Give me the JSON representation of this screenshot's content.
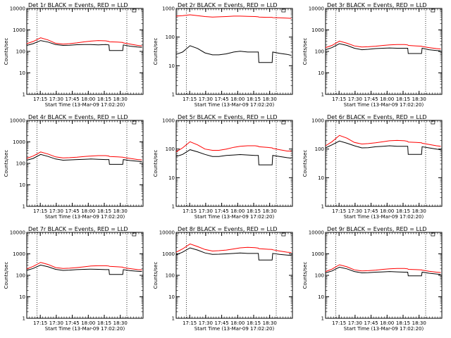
{
  "figure": {
    "background": "#ffffff",
    "series_colors": {
      "events": "#000000",
      "lld": "#ff0000"
    }
  },
  "chart_data": [
    {
      "type": "line",
      "title": "Det 1r BLACK = Events, RED = LLD",
      "xlabel": "Start Time (13-Mar-09 17:02:20)",
      "ylabel": "Counts/sec",
      "yscale": "log",
      "ylim": [
        1,
        10000
      ],
      "xticks": [
        "17:15",
        "17:30",
        "17:45",
        "18:00",
        "18:15",
        "18:30"
      ],
      "yticks": [
        "1",
        "10",
        "100",
        "1000",
        "10000"
      ],
      "x_minutes": [
        0,
        6,
        13,
        20,
        27,
        34,
        40,
        47,
        54,
        60,
        67,
        74,
        77,
        77.5,
        85,
        90,
        90.5,
        97,
        104,
        108
      ],
      "series": [
        {
          "color": "#000000",
          "values": [
            190,
            230,
            320,
            270,
            210,
            190,
            195,
            205,
            210,
            210,
            200,
            210,
            200,
            110,
            110,
            110,
            200,
            175,
            160,
            155
          ]
        },
        {
          "color": "#ff0000",
          "values": [
            230,
            290,
            430,
            340,
            240,
            220,
            230,
            250,
            280,
            300,
            320,
            310,
            290,
            280,
            270,
            260,
            250,
            220,
            190,
            180
          ]
        }
      ]
    },
    {
      "type": "line",
      "title": "Det 2r BLACK = Events, RED = LLD",
      "xlabel": "Start Time (13-Mar-09 17:02:20)",
      "ylabel": "Counts/sec",
      "yscale": "log",
      "ylim": [
        1,
        1000
      ],
      "xticks": [
        "17:15",
        "17:30",
        "17:45",
        "18:00",
        "18:15",
        "18:30"
      ],
      "yticks": [
        "1",
        "10",
        "100",
        "1000"
      ],
      "x_minutes": [
        0,
        6,
        13,
        20,
        27,
        34,
        40,
        47,
        54,
        60,
        67,
        74,
        77,
        77.5,
        85,
        90,
        90.5,
        97,
        104,
        108
      ],
      "series": [
        {
          "color": "#000000",
          "values": [
            25,
            30,
            50,
            40,
            28,
            24,
            24,
            26,
            30,
            32,
            30,
            30,
            30,
            13,
            13,
            13,
            30,
            27,
            25,
            23
          ]
        },
        {
          "color": "#ff0000",
          "values": [
            540,
            560,
            600,
            560,
            520,
            500,
            510,
            520,
            540,
            540,
            530,
            520,
            510,
            500,
            490,
            490,
            480,
            470,
            460,
            450
          ]
        }
      ]
    },
    {
      "type": "line",
      "title": "Det 3r BLACK = Events, RED = LLD",
      "xlabel": "Start Time (13-Mar-09 17:02:20)",
      "ylabel": "Counts/sec",
      "yscale": "log",
      "ylim": [
        1,
        10000
      ],
      "xticks": [
        "17:15",
        "17:30",
        "17:45",
        "18:00",
        "18:15",
        "18:30"
      ],
      "yticks": [
        "1",
        "10",
        "100",
        "1000",
        "10000"
      ],
      "x_minutes": [
        0,
        6,
        13,
        20,
        27,
        34,
        40,
        47,
        54,
        60,
        67,
        74,
        77,
        77.5,
        85,
        90,
        90.5,
        97,
        104,
        108
      ],
      "series": [
        {
          "color": "#000000",
          "values": [
            120,
            150,
            230,
            190,
            140,
            120,
            125,
            135,
            140,
            145,
            140,
            140,
            140,
            80,
            80,
            80,
            140,
            120,
            110,
            105
          ]
        },
        {
          "color": "#ff0000",
          "values": [
            150,
            190,
            300,
            240,
            180,
            160,
            165,
            175,
            190,
            200,
            210,
            210,
            200,
            190,
            180,
            175,
            170,
            150,
            135,
            130
          ]
        }
      ]
    },
    {
      "type": "line",
      "title": "Det 4r BLACK = Events, RED = LLD",
      "xlabel": "Start Time (13-Mar-09 17:02:20)",
      "ylabel": "Counts/sec",
      "yscale": "log",
      "ylim": [
        1,
        10000
      ],
      "xticks": [
        "17:15",
        "17:30",
        "17:45",
        "18:00",
        "18:15",
        "18:30"
      ],
      "yticks": [
        "1",
        "10",
        "100",
        "1000",
        "10000"
      ],
      "x_minutes": [
        0,
        6,
        13,
        20,
        27,
        34,
        40,
        47,
        54,
        60,
        67,
        74,
        77,
        77.5,
        85,
        90,
        90.5,
        97,
        104,
        108
      ],
      "series": [
        {
          "color": "#000000",
          "values": [
            140,
            170,
            260,
            210,
            160,
            140,
            145,
            150,
            155,
            160,
            155,
            150,
            150,
            90,
            90,
            90,
            150,
            135,
            125,
            120
          ]
        },
        {
          "color": "#ff0000",
          "values": [
            170,
            220,
            340,
            270,
            200,
            180,
            185,
            195,
            210,
            220,
            230,
            230,
            220,
            210,
            200,
            195,
            190,
            170,
            150,
            145
          ]
        }
      ]
    },
    {
      "type": "line",
      "title": "Det 5r BLACK = Events, RED = LLD",
      "xlabel": "Start Time (13-Mar-09 17:02:20)",
      "ylabel": "Counts/sec",
      "yscale": "log",
      "ylim": [
        1,
        1000
      ],
      "xticks": [
        "17:15",
        "17:30",
        "17:45",
        "18:00",
        "18:15",
        "18:30"
      ],
      "yticks": [
        "1",
        "10",
        "100",
        "1000"
      ],
      "x_minutes": [
        0,
        6,
        13,
        20,
        27,
        34,
        40,
        47,
        54,
        60,
        67,
        74,
        77,
        77.5,
        85,
        90,
        90.5,
        97,
        104,
        108
      ],
      "series": [
        {
          "color": "#000000",
          "values": [
            55,
            65,
            95,
            80,
            65,
            55,
            55,
            60,
            62,
            64,
            62,
            60,
            60,
            28,
            28,
            28,
            60,
            55,
            50,
            48
          ]
        },
        {
          "color": "#ff0000",
          "values": [
            80,
            110,
            180,
            140,
            100,
            90,
            90,
            100,
            115,
            125,
            130,
            130,
            125,
            120,
            115,
            110,
            105,
            95,
            85,
            85
          ]
        }
      ]
    },
    {
      "type": "line",
      "title": "Det 6r BLACK = Events, RED = LLD",
      "xlabel": "Start Time (13-Mar-09 17:02:20)",
      "ylabel": "Counts/sec",
      "yscale": "log",
      "ylim": [
        1,
        1000
      ],
      "xticks": [
        "17:15",
        "17:30",
        "17:45",
        "18:00",
        "18:15",
        "18:30"
      ],
      "yticks": [
        "1",
        "10",
        "100",
        "1000"
      ],
      "x_minutes": [
        0,
        6,
        13,
        20,
        27,
        34,
        40,
        47,
        54,
        60,
        67,
        74,
        77,
        77.5,
        85,
        90,
        90.5,
        97,
        104,
        108
      ],
      "series": [
        {
          "color": "#000000",
          "values": [
            110,
            140,
            190,
            160,
            130,
            110,
            112,
            120,
            125,
            130,
            125,
            125,
            125,
            65,
            65,
            65,
            120,
            110,
            100,
            95
          ]
        },
        {
          "color": "#ff0000",
          "values": [
            130,
            180,
            300,
            240,
            170,
            150,
            155,
            165,
            180,
            195,
            200,
            195,
            185,
            175,
            170,
            165,
            160,
            145,
            130,
            125
          ]
        }
      ]
    },
    {
      "type": "line",
      "title": "Det 7r BLACK = Events, RED = LLD",
      "xlabel": "Start Time (13-Mar-09 17:02:20)",
      "ylabel": "Counts/sec",
      "yscale": "log",
      "ylim": [
        1,
        10000
      ],
      "xticks": [
        "17:15",
        "17:30",
        "17:45",
        "18:00",
        "18:15",
        "18:30"
      ],
      "yticks": [
        "1",
        "10",
        "100",
        "1000",
        "10000"
      ],
      "x_minutes": [
        0,
        6,
        13,
        20,
        27,
        34,
        40,
        47,
        54,
        60,
        67,
        74,
        77,
        77.5,
        85,
        90,
        90.5,
        97,
        104,
        108
      ],
      "series": [
        {
          "color": "#000000",
          "values": [
            170,
            210,
            300,
            250,
            190,
            170,
            175,
            185,
            190,
            195,
            190,
            185,
            185,
            110,
            110,
            110,
            185,
            165,
            155,
            150
          ]
        },
        {
          "color": "#ff0000",
          "values": [
            200,
            260,
            400,
            320,
            230,
            210,
            215,
            230,
            250,
            270,
            280,
            280,
            270,
            260,
            250,
            240,
            230,
            205,
            185,
            180
          ]
        }
      ]
    },
    {
      "type": "line",
      "title": "Det 8r BLACK = Events, RED = LLD",
      "xlabel": "Start Time (13-Mar-09 17:02:20)",
      "ylabel": "Counts/sec",
      "yscale": "log",
      "ylim": [
        1,
        10000
      ],
      "xticks": [
        "17:15",
        "17:30",
        "17:45",
        "18:00",
        "18:15",
        "18:30"
      ],
      "yticks": [
        "1",
        "10",
        "100",
        "1000",
        "10000"
      ],
      "x_minutes": [
        0,
        6,
        13,
        20,
        27,
        34,
        40,
        47,
        54,
        60,
        67,
        74,
        77,
        77.5,
        85,
        90,
        90.5,
        97,
        104,
        108
      ],
      "series": [
        {
          "color": "#000000",
          "values": [
            900,
            1200,
            1900,
            1500,
            1100,
            950,
            960,
            1000,
            1050,
            1100,
            1050,
            1050,
            1050,
            520,
            520,
            520,
            1050,
            950,
            880,
            850
          ]
        },
        {
          "color": "#ff0000",
          "values": [
            1200,
            1700,
            2900,
            2200,
            1600,
            1350,
            1400,
            1500,
            1700,
            1900,
            2000,
            1950,
            1850,
            1750,
            1650,
            1600,
            1550,
            1350,
            1200,
            1150
          ]
        }
      ]
    },
    {
      "type": "line",
      "title": "Det 9r BLACK = Events, RED = LLD",
      "xlabel": "Start Time (13-Mar-09 17:02:20)",
      "ylabel": "Counts/sec",
      "yscale": "log",
      "ylim": [
        1,
        10000
      ],
      "xticks": [
        "17:15",
        "17:30",
        "17:45",
        "18:00",
        "18:15",
        "18:30"
      ],
      "yticks": [
        "1",
        "10",
        "100",
        "1000",
        "10000"
      ],
      "x_minutes": [
        0,
        6,
        13,
        20,
        27,
        34,
        40,
        47,
        54,
        60,
        67,
        74,
        77,
        77.5,
        85,
        90,
        90.5,
        97,
        104,
        108
      ],
      "series": [
        {
          "color": "#000000",
          "values": [
            130,
            160,
            240,
            200,
            150,
            130,
            133,
            140,
            145,
            150,
            145,
            140,
            140,
            95,
            95,
            95,
            140,
            125,
            115,
            110
          ]
        },
        {
          "color": "#ff0000",
          "values": [
            150,
            195,
            310,
            250,
            180,
            160,
            165,
            175,
            190,
            200,
            210,
            210,
            200,
            190,
            185,
            180,
            175,
            155,
            140,
            135
          ]
        }
      ]
    }
  ]
}
